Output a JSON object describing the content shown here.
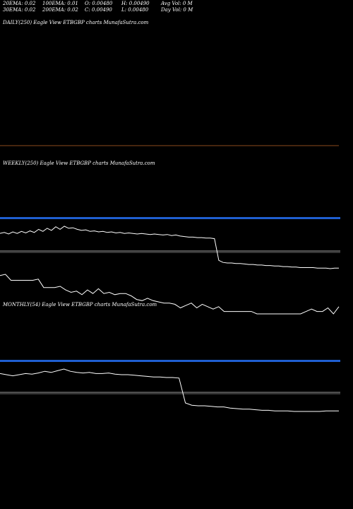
{
  "header": {
    "ema20": "20EMA: 0.02",
    "ema100": "100EMA: 0.01",
    "open": "O: 0.00480",
    "high": "H: 0.00490",
    "avg_vol": "Avg Vol: 0  M",
    "ema30": "30EMA: 0.02",
    "ema200": "200EMA: 0.02",
    "close": "C: 0.00490",
    "low": "L: 0.00480",
    "day_vol": "Day Vol: 0  M"
  },
  "panels": {
    "daily_label": "DAILY(250) Eagle   View  ETBGBP charts MunafaSutra.com",
    "weekly_label": "WEEKLY(250) Eagle   View  ETBGBP charts MunafaSutra.com",
    "monthly_label": "MONTHLY(54) Eagle   View  ETBGBP charts MunafaSutra.com"
  },
  "colors": {
    "background": "#000000",
    "line": "#ffffff",
    "blue_band": "#1f5fd0",
    "divider": "#8b4a1c",
    "ref_line": "#9a9a9a"
  },
  "chart_data": [
    {
      "type": "line",
      "panel": "weekly",
      "series": [
        {
          "values": [
            0.62,
            0.64,
            0.61,
            0.65,
            0.62,
            0.66,
            0.63,
            0.67,
            0.64,
            0.7,
            0.66,
            0.72,
            0.68,
            0.75,
            0.7,
            0.76,
            0.72,
            0.73,
            0.7,
            0.68,
            0.69,
            0.66,
            0.67,
            0.65,
            0.66,
            0.64,
            0.65,
            0.63,
            0.64,
            0.62,
            0.63,
            0.62,
            0.61,
            0.62,
            0.61,
            0.6,
            0.61,
            0.6,
            0.59,
            0.6,
            0.58,
            0.59,
            0.57,
            0.56,
            0.55,
            0.55,
            0.54,
            0.54,
            0.53,
            0.53,
            0.52,
            0.1,
            0.06,
            0.05,
            0.05,
            0.04,
            0.04,
            0.03,
            0.02,
            0.02,
            0.01,
            0.01,
            0.0,
            0.0,
            -0.01,
            -0.01,
            -0.02,
            -0.02,
            -0.03,
            -0.03,
            -0.04,
            -0.04,
            -0.04,
            -0.04,
            -0.05,
            -0.05,
            -0.05,
            -0.06,
            -0.05,
            -0.05
          ]
        },
        {
          "values": [
            0.3,
            0.32,
            0.22,
            0.22,
            0.22,
            0.22,
            0.22,
            0.24,
            0.1,
            0.1,
            0.1,
            0.12,
            0.06,
            0.02,
            0.04,
            -0.02,
            0.06,
            0.0,
            0.08,
            0.0,
            0.02,
            -0.02,
            0.0,
            0.0,
            -0.04,
            -0.1,
            -0.12,
            -0.08,
            -0.12,
            -0.14,
            -0.16,
            -0.16,
            -0.18,
            -0.24,
            -0.2,
            -0.16,
            -0.24,
            -0.18,
            -0.22,
            -0.26,
            -0.22,
            -0.3,
            -0.3,
            -0.3,
            -0.3,
            -0.3,
            -0.3,
            -0.34,
            -0.34,
            -0.34,
            -0.34,
            -0.34,
            -0.34,
            -0.34,
            -0.34,
            -0.34,
            -0.3,
            -0.26,
            -0.3,
            -0.3,
            -0.24,
            -0.34,
            -0.22
          ]
        }
      ]
    },
    {
      "type": "line",
      "panel": "monthly",
      "series": [
        {
          "values": [
            0.62,
            0.6,
            0.58,
            0.6,
            0.62,
            0.61,
            0.63,
            0.66,
            0.64,
            0.67,
            0.7,
            0.66,
            0.64,
            0.63,
            0.64,
            0.62,
            0.62,
            0.63,
            0.61,
            0.6,
            0.6,
            0.59,
            0.58,
            0.57,
            0.56,
            0.56,
            0.55,
            0.55,
            0.54,
            0.1,
            0.06,
            0.05,
            0.05,
            0.04,
            0.03,
            0.03,
            0.01,
            0.0,
            -0.01,
            -0.01,
            -0.02,
            -0.03,
            -0.03,
            -0.04,
            -0.04,
            -0.04,
            -0.05,
            -0.05,
            -0.05,
            -0.05,
            -0.05,
            -0.04,
            -0.04,
            -0.04
          ]
        }
      ]
    }
  ]
}
